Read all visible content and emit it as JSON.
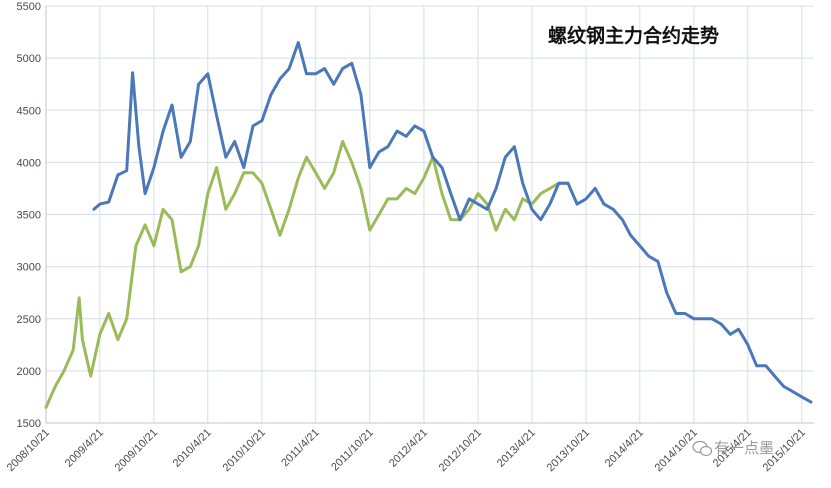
{
  "chart_data": {
    "type": "line",
    "title": "螺纹钢主力合约走势",
    "ylim": [
      1500,
      5500
    ],
    "y_ticks": [
      1500,
      2000,
      2500,
      3000,
      3500,
      4000,
      4500,
      5000,
      5500
    ],
    "x_tick_labels": [
      "2008/10/21",
      "2009/4/21",
      "2009/10/21",
      "2010/4/21",
      "2010/10/21",
      "2011/4/21",
      "2011/10/21",
      "2012/4/21",
      "2012/10/21",
      "2013/4/21",
      "2013/10/21",
      "2014/4/21",
      "2014/10/21",
      "2015/4/21",
      "2015/10/21"
    ],
    "grid": true,
    "legend": "none",
    "series": [
      {
        "color": "#4a78b8",
        "x": [
          "2009/4/1",
          "2009/4/21",
          "2009/5/21",
          "2009/6/21",
          "2009/7/21",
          "2009/8/10",
          "2009/8/31",
          "2009/9/21",
          "2009/10/21",
          "2009/11/21",
          "2009/12/21",
          "2010/1/21",
          "2010/2/21",
          "2010/3/21",
          "2010/4/21",
          "2010/5/21",
          "2010/6/21",
          "2010/7/21",
          "2010/8/21",
          "2010/9/21",
          "2010/10/21",
          "2010/11/21",
          "2010/12/21",
          "2011/1/21",
          "2011/2/21",
          "2011/3/21",
          "2011/4/21",
          "2011/5/21",
          "2011/6/21",
          "2011/7/21",
          "2011/8/21",
          "2011/9/21",
          "2011/10/21",
          "2011/11/21",
          "2011/12/21",
          "2012/1/21",
          "2012/2/21",
          "2012/3/21",
          "2012/4/21",
          "2012/5/21",
          "2012/6/21",
          "2012/7/21",
          "2012/8/21",
          "2012/9/21",
          "2012/10/21",
          "2012/11/21",
          "2012/12/21",
          "2013/1/21",
          "2013/2/21",
          "2013/3/21",
          "2013/4/21",
          "2013/5/21",
          "2013/6/21",
          "2013/7/21",
          "2013/8/21",
          "2013/9/21",
          "2013/10/21",
          "2013/11/21",
          "2013/12/21",
          "2014/1/21",
          "2014/2/21",
          "2014/3/21",
          "2014/4/21",
          "2014/5/21",
          "2014/6/21",
          "2014/7/21",
          "2014/8/21",
          "2014/9/21",
          "2014/10/21",
          "2014/11/21",
          "2014/12/21",
          "2015/1/21",
          "2015/2/21",
          "2015/3/21",
          "2015/4/21",
          "2015/5/21",
          "2015/6/21",
          "2015/7/21",
          "2015/8/21",
          "2015/9/21",
          "2015/10/21",
          "2015/11/21"
        ],
        "values": [
          3550,
          3600,
          3620,
          3880,
          3920,
          4860,
          4150,
          3700,
          3950,
          4300,
          4550,
          4050,
          4200,
          4750,
          4850,
          4450,
          4050,
          4200,
          3950,
          4350,
          4400,
          4650,
          4800,
          4900,
          5150,
          4850,
          4850,
          4900,
          4750,
          4900,
          4950,
          4650,
          3950,
          4100,
          4150,
          4300,
          4250,
          4350,
          4300,
          4050,
          3950,
          3700,
          3450,
          3650,
          3600,
          3550,
          3750,
          4050,
          4150,
          3800,
          3550,
          3450,
          3600,
          3800,
          3800,
          3600,
          3650,
          3750,
          3600,
          3550,
          3450,
          3300,
          3200,
          3100,
          3050,
          2750,
          2550,
          2550,
          2500,
          2500,
          2500,
          2450,
          2350,
          2400,
          2250,
          2050,
          2050,
          1950,
          1850,
          1800,
          1750,
          1700
        ]
      },
      {
        "color": "#9bbb59",
        "x": [
          "2008/10/21",
          "2008/11/21",
          "2008/12/21",
          "2009/1/21",
          "2009/2/10",
          "2009/2/21",
          "2009/3/21",
          "2009/4/21",
          "2009/5/21",
          "2009/6/21",
          "2009/7/21",
          "2009/8/21",
          "2009/9/21",
          "2009/10/21",
          "2009/11/21",
          "2009/12/21",
          "2010/1/21",
          "2010/2/21",
          "2010/3/21",
          "2010/4/21",
          "2010/5/21",
          "2010/6/21",
          "2010/7/21",
          "2010/8/21",
          "2010/9/21",
          "2010/10/21",
          "2010/11/21",
          "2010/12/21",
          "2011/1/21",
          "2011/2/21",
          "2011/3/21",
          "2011/4/21",
          "2011/5/21",
          "2011/6/21",
          "2011/7/21",
          "2011/8/21",
          "2011/9/21",
          "2011/10/21",
          "2011/11/21",
          "2011/12/21",
          "2012/1/21",
          "2012/2/21",
          "2012/3/21",
          "2012/4/21",
          "2012/5/21",
          "2012/6/21",
          "2012/7/21",
          "2012/8/21",
          "2012/9/21",
          "2012/10/21",
          "2012/11/21",
          "2012/12/21",
          "2013/1/21",
          "2013/2/21",
          "2013/3/21",
          "2013/4/21",
          "2013/5/21",
          "2013/6/21",
          "2013/7/21",
          "2013/8/21"
        ],
        "values": [
          1650,
          1850,
          2000,
          2200,
          2700,
          2300,
          1950,
          2350,
          2550,
          2300,
          2500,
          3200,
          3400,
          3200,
          3550,
          3450,
          2950,
          3000,
          3200,
          3700,
          3950,
          3550,
          3700,
          3900,
          3900,
          3800,
          3550,
          3300,
          3550,
          3850,
          4050,
          3900,
          3750,
          3900,
          4200,
          4000,
          3750,
          3350,
          3500,
          3650,
          3650,
          3750,
          3700,
          3850,
          4050,
          3700,
          3450,
          3450,
          3550,
          3700,
          3600,
          3350,
          3550,
          3450,
          3650,
          3600,
          3700,
          3750,
          3800,
          3800
        ]
      }
    ]
  },
  "watermark": {
    "text": "有一点墨",
    "icon": "wechat-icon"
  }
}
